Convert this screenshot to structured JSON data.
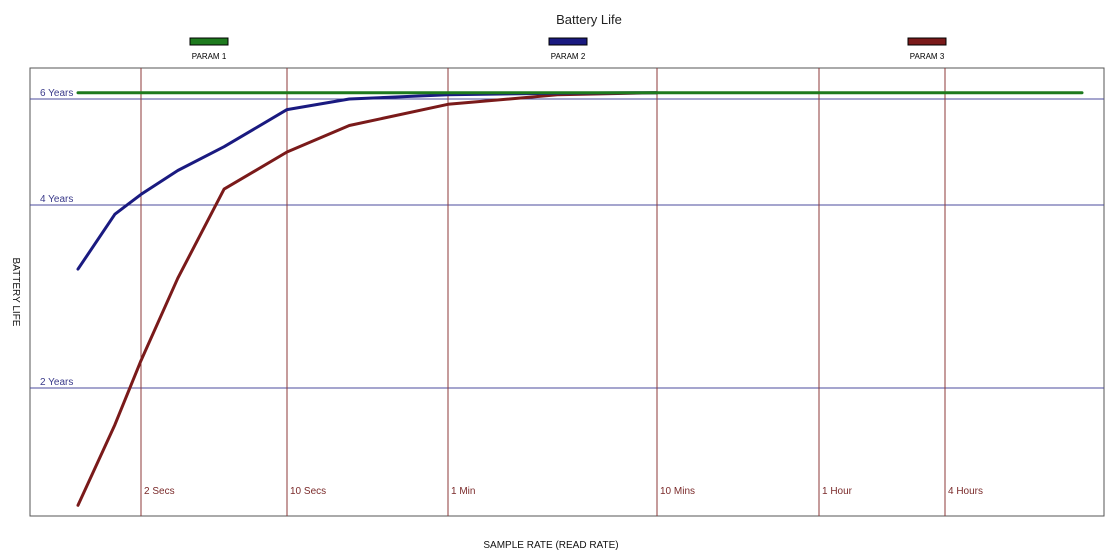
{
  "chart_data": {
    "type": "line",
    "title": "Battery Life",
    "xlabel": "SAMPLE RATE (READ RATE)",
    "ylabel": "BATTERY LIFE",
    "x_tick_labels": [
      "2 Secs",
      "10 Secs",
      "1 Min",
      "10 Mins",
      "1 Hour",
      "4 Hours"
    ],
    "x_tick_values_seconds": [
      2,
      10,
      60,
      600,
      3600,
      14400
    ],
    "x_scale": "log",
    "xlim_seconds": [
      1,
      86400
    ],
    "y_tick_labels": [
      "2 Years",
      "4 Years",
      "6 Years"
    ],
    "y_tick_values": [
      2,
      4,
      6
    ],
    "ylim": [
      0.2,
      6.4
    ],
    "grid": true,
    "legend_position": "top",
    "series": [
      {
        "name": "PARAM 1",
        "color": "#1e7a1e",
        "x": [
          1,
          2,
          10,
          60,
          600,
          3600,
          14400,
          86400
        ],
        "y": [
          6.12,
          6.12,
          6.12,
          6.12,
          6.12,
          6.12,
          6.12,
          6.12
        ]
      },
      {
        "name": "PARAM 2",
        "color": "#1a1a80",
        "x": [
          1,
          1.5,
          2,
          3,
          5,
          10,
          20,
          60,
          200,
          600
        ],
        "y": [
          3.3,
          3.9,
          4.2,
          4.65,
          5.1,
          5.8,
          6.0,
          6.08,
          6.11,
          6.12
        ]
      },
      {
        "name": "PARAM 3",
        "color": "#7a1a1a",
        "x": [
          1,
          1.5,
          2,
          3,
          5,
          10,
          20,
          60,
          200,
          600
        ],
        "y": [
          0.4,
          1.5,
          2.3,
          3.2,
          4.3,
          5.0,
          5.5,
          5.9,
          6.08,
          6.12
        ]
      }
    ]
  }
}
